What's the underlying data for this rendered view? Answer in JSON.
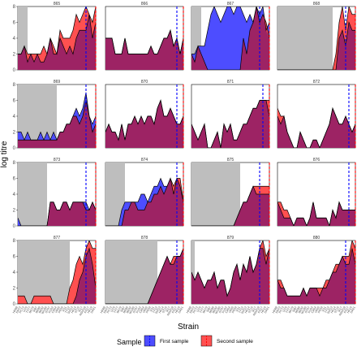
{
  "chart_data": {
    "type": "area",
    "xlabel": "Strain",
    "ylabel": "log titre",
    "ylim": [
      0,
      8
    ],
    "yticks": [
      0,
      2,
      4,
      6,
      8
    ],
    "legend": {
      "title": "Sample",
      "position": "bottom",
      "entries": [
        "First sample",
        "Second sample"
      ]
    },
    "colors": {
      "first_fill": "#4d4dff",
      "second_fill": "#ff5050",
      "overlap_fill": "#9d2364",
      "shade": "#bebebe",
      "first_line": "#0000ff",
      "second_line": "#ff0000"
    },
    "n_strains": 25,
    "strain_tick_labels": [
      "HK68",
      "EN72",
      "PC73",
      "VI75",
      "TX77",
      "BK79",
      "SI87",
      "BE89",
      "BE92",
      "WU95",
      "SY97",
      "FU02",
      "CA04",
      "WI05",
      "PE09",
      "VI11",
      "TX12",
      "SW13",
      "HK14",
      "ST15",
      "SI17",
      "NSW18",
      "KS17",
      "HK19",
      "DA21"
    ],
    "panels": [
      {
        "title": "865",
        "shade_end": 3,
        "vline_first": 21,
        "vline_second": 24,
        "first": [
          2,
          2,
          3,
          1,
          2,
          1,
          2,
          1,
          1,
          2,
          4,
          2,
          2,
          4,
          3,
          2,
          3,
          2,
          4,
          5,
          5,
          5,
          7,
          4,
          6
        ],
        "second": [
          2,
          2,
          3,
          2,
          2,
          2,
          2,
          2,
          3,
          2,
          4,
          3,
          2,
          5,
          4,
          4,
          4,
          5,
          7,
          6,
          7,
          8,
          7,
          6,
          8
        ]
      },
      {
        "title": "866",
        "shade_end": 0,
        "vline_first": 22,
        "vline_second": 24,
        "first": [
          4,
          4,
          4,
          2,
          2,
          2,
          4,
          2,
          2,
          2,
          2,
          2,
          2,
          2,
          3,
          2,
          2,
          3,
          4,
          4,
          5,
          3,
          4,
          2,
          4
        ],
        "second": [
          4,
          4,
          4,
          2,
          2,
          2,
          4,
          2,
          2,
          2,
          2,
          2,
          2,
          2,
          3,
          2,
          2,
          3,
          4,
          4,
          5,
          3,
          4,
          2,
          4
        ]
      },
      {
        "title": "867",
        "shade_end": 3,
        "vline_first": 21,
        "vline_second": 24,
        "first": [
          2,
          2,
          3,
          3,
          3,
          5,
          7,
          8,
          7,
          6,
          7,
          8,
          8,
          7,
          8,
          8,
          7,
          6,
          7,
          6,
          8,
          7,
          8,
          5,
          6
        ],
        "second": [
          2,
          1,
          3,
          2,
          1,
          0,
          0,
          0,
          0,
          0,
          0,
          0,
          0,
          0,
          0,
          0,
          4,
          2,
          5,
          6,
          8,
          6,
          7,
          6,
          4
        ]
      },
      {
        "title": "868",
        "shade_end": 17,
        "vline_first": 21,
        "vline_second": 24,
        "first": [
          0,
          0,
          0,
          0,
          0,
          0,
          0,
          0,
          0,
          0,
          0,
          0,
          0,
          0,
          0,
          0,
          0,
          0,
          0,
          4,
          5,
          3,
          6,
          5,
          5
        ],
        "second": [
          0,
          0,
          0,
          0,
          0,
          0,
          0,
          0,
          0,
          0,
          0,
          0,
          0,
          0,
          0,
          0,
          0,
          0,
          2,
          6,
          8,
          5,
          8,
          7,
          7
        ]
      },
      {
        "title": "869",
        "shade_end": 12,
        "vline_first": 21,
        "vline_second": 24,
        "first": [
          2,
          2,
          1,
          2,
          1,
          1,
          1,
          2,
          1,
          2,
          1,
          2,
          1,
          2,
          2,
          3,
          3,
          4,
          5,
          4,
          5,
          7,
          4,
          3,
          4
        ],
        "second": [
          1,
          1,
          1,
          1,
          1,
          1,
          1,
          1,
          1,
          1,
          1,
          1,
          1,
          2,
          2,
          3,
          3,
          4,
          4,
          3,
          4,
          6,
          4,
          2,
          3
        ]
      },
      {
        "title": "870",
        "shade_end": 0,
        "vline_first": 22,
        "vline_second": 24,
        "first": [
          2,
          3,
          2,
          2,
          1,
          3,
          1,
          3,
          3,
          4,
          3,
          4,
          3,
          4,
          4,
          3,
          5,
          6,
          4,
          4,
          5,
          4,
          3,
          3,
          4
        ],
        "second": [
          2,
          3,
          2,
          2,
          1,
          3,
          1,
          3,
          3,
          4,
          3,
          4,
          3,
          4,
          4,
          3,
          5,
          6,
          4,
          4,
          5,
          4,
          3,
          3,
          4
        ]
      },
      {
        "title": "871",
        "shade_end": 0,
        "vline_first": 22,
        "vline_second": 24,
        "first": [
          3,
          2,
          1,
          2,
          3,
          0,
          0,
          1,
          2,
          0,
          3,
          2,
          3,
          1,
          1,
          2,
          3,
          3,
          4,
          5,
          5,
          6,
          6,
          6,
          4
        ],
        "second": [
          3,
          2,
          1,
          2,
          3,
          0,
          0,
          1,
          2,
          0,
          3,
          2,
          3,
          1,
          1,
          2,
          3,
          3,
          4,
          5,
          5,
          6,
          6,
          6,
          6
        ]
      },
      {
        "title": "872",
        "shade_end": 0,
        "vline_first": 22,
        "vline_second": 24,
        "first": [
          4,
          3,
          4,
          2,
          1,
          0,
          0,
          2,
          1,
          0,
          0,
          1,
          1,
          0,
          1,
          2,
          3,
          5,
          4,
          3,
          3,
          4,
          3,
          2,
          3
        ],
        "second": [
          5,
          4,
          4,
          2,
          1,
          0,
          0,
          2,
          1,
          0,
          0,
          1,
          1,
          0,
          1,
          2,
          3,
          5,
          4,
          3,
          3,
          4,
          3,
          2,
          3
        ]
      },
      {
        "title": "873",
        "shade_end": 9,
        "vline_first": 21,
        "vline_second": 24,
        "first": [
          1,
          0,
          0,
          0,
          0,
          0,
          0,
          0,
          0,
          0,
          3,
          3,
          2,
          2,
          3,
          3,
          2,
          3,
          3,
          3,
          3,
          3,
          2,
          3,
          2
        ],
        "second": [
          0,
          0,
          0,
          0,
          0,
          0,
          0,
          0,
          0,
          0,
          3,
          3,
          2,
          2,
          3,
          3,
          2,
          3,
          3,
          3,
          3,
          2,
          2,
          3,
          2
        ]
      },
      {
        "title": "874",
        "shade_end": 6,
        "vline_first": 22,
        "vline_second": 24,
        "first": [
          0,
          0,
          0,
          0,
          0,
          2,
          3,
          3,
          3,
          3,
          3,
          4,
          4,
          3,
          4,
          5,
          5,
          6,
          5,
          5,
          6,
          4,
          6,
          5,
          3
        ],
        "second": [
          0,
          0,
          0,
          0,
          0,
          0,
          2,
          2,
          3,
          3,
          2,
          2,
          2,
          3,
          3,
          4,
          4,
          5,
          4,
          5,
          6,
          5,
          6,
          6,
          3
        ]
      },
      {
        "title": "875",
        "shade_end": 15,
        "vline_first": 21,
        "vline_second": 24,
        "first": [
          0,
          0,
          0,
          0,
          0,
          0,
          0,
          0,
          0,
          0,
          0,
          0,
          0,
          0,
          1,
          2,
          3,
          3,
          4,
          5,
          4,
          4,
          4,
          4,
          4
        ],
        "second": [
          0,
          0,
          0,
          0,
          0,
          0,
          0,
          0,
          0,
          0,
          0,
          0,
          0,
          0,
          1,
          2,
          3,
          3,
          4,
          5,
          5,
          5,
          5,
          5,
          5
        ]
      },
      {
        "title": "876",
        "shade_end": 0,
        "vline_first": 22,
        "vline_second": 24,
        "first": [
          3,
          2,
          1,
          1,
          1,
          0,
          1,
          1,
          1,
          0,
          1,
          3,
          1,
          1,
          1,
          1,
          0,
          2,
          1,
          3,
          2,
          2,
          2,
          2,
          2
        ],
        "second": [
          3,
          3,
          2,
          2,
          1,
          0,
          1,
          1,
          1,
          0,
          1,
          3,
          1,
          1,
          1,
          1,
          0,
          2,
          1,
          3,
          2,
          2,
          2,
          2,
          2
        ]
      },
      {
        "title": "877",
        "shade_end": 16,
        "vline_first": 21,
        "vline_second": 24,
        "first": [
          0,
          0,
          0,
          0,
          0,
          0,
          0,
          0,
          0,
          0,
          0,
          0,
          0,
          0,
          0,
          0,
          0,
          0,
          1,
          3,
          4,
          6,
          7,
          5,
          2
        ],
        "second": [
          1,
          1,
          1,
          0,
          0,
          1,
          1,
          1,
          1,
          1,
          1,
          0,
          0,
          0,
          0,
          0,
          2,
          3,
          5,
          6,
          5,
          7,
          8,
          7,
          7
        ]
      },
      {
        "title": "878",
        "shade_end": 16,
        "vline_first": 22,
        "vline_second": 24,
        "first": [
          0,
          0,
          0,
          0,
          0,
          0,
          0,
          0,
          0,
          0,
          0,
          0,
          0,
          0,
          1,
          2,
          3,
          4,
          5,
          6,
          5,
          5,
          6,
          6,
          7
        ],
        "second": [
          0,
          0,
          0,
          0,
          0,
          0,
          0,
          0,
          0,
          0,
          0,
          0,
          0,
          0,
          1,
          2,
          3,
          4,
          5,
          6,
          5,
          6,
          6,
          6,
          7
        ]
      },
      {
        "title": "879",
        "shade_end": 1,
        "vline_first": 21,
        "vline_second": 24,
        "first": [
          4,
          3,
          4,
          3,
          2,
          3,
          3,
          4,
          2,
          3,
          3,
          1,
          2,
          4,
          5,
          3,
          5,
          4,
          6,
          4,
          5,
          7,
          7,
          5,
          7
        ],
        "second": [
          4,
          3,
          4,
          3,
          2,
          3,
          3,
          4,
          2,
          3,
          3,
          1,
          2,
          4,
          5,
          3,
          5,
          4,
          6,
          4,
          5,
          7,
          8,
          6,
          7
        ]
      },
      {
        "title": "880",
        "shade_end": 0,
        "vline_first": 21,
        "vline_second": 24,
        "first": [
          3,
          2,
          2,
          1,
          1,
          1,
          1,
          1,
          2,
          1,
          2,
          2,
          2,
          1,
          2,
          2,
          3,
          4,
          4,
          5,
          6,
          5,
          5,
          7,
          5
        ],
        "second": [
          3,
          3,
          2,
          1,
          1,
          1,
          1,
          1,
          2,
          1,
          2,
          2,
          2,
          2,
          2,
          3,
          3,
          4,
          5,
          5,
          6,
          6,
          6,
          8,
          7
        ]
      }
    ]
  }
}
